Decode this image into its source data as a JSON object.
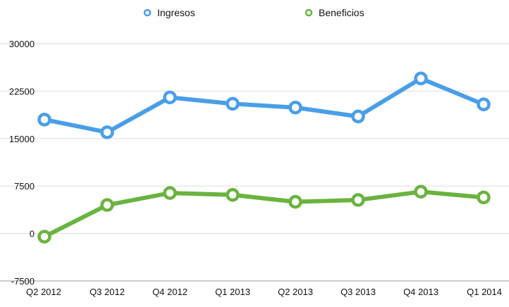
{
  "chart_data": {
    "type": "line",
    "title": "",
    "xlabel": "",
    "ylabel": "",
    "categories": [
      "Q2 2012",
      "Q3 2012",
      "Q4 2012",
      "Q1 2013",
      "Q2 2013",
      "Q3 2013",
      "Q4 2013",
      "Q1 2014"
    ],
    "ylim": [
      -7500,
      30000
    ],
    "yticks": [
      -7500,
      0,
      7500,
      15000,
      22500,
      30000
    ],
    "ytick_labels": [
      "-7500",
      "0",
      "7500",
      "15000",
      "22500",
      "30000"
    ],
    "grid": true,
    "legend_position": "top-center",
    "series": [
      {
        "name": "Ingresos",
        "color": "#4a9ee8",
        "values": [
          18000,
          16000,
          21500,
          20500,
          19900,
          18500,
          24500,
          20400
        ]
      },
      {
        "name": "Beneficios",
        "color": "#6ab33f",
        "values": [
          -500,
          4500,
          6400,
          6100,
          5000,
          5300,
          6600,
          5700
        ]
      }
    ]
  }
}
